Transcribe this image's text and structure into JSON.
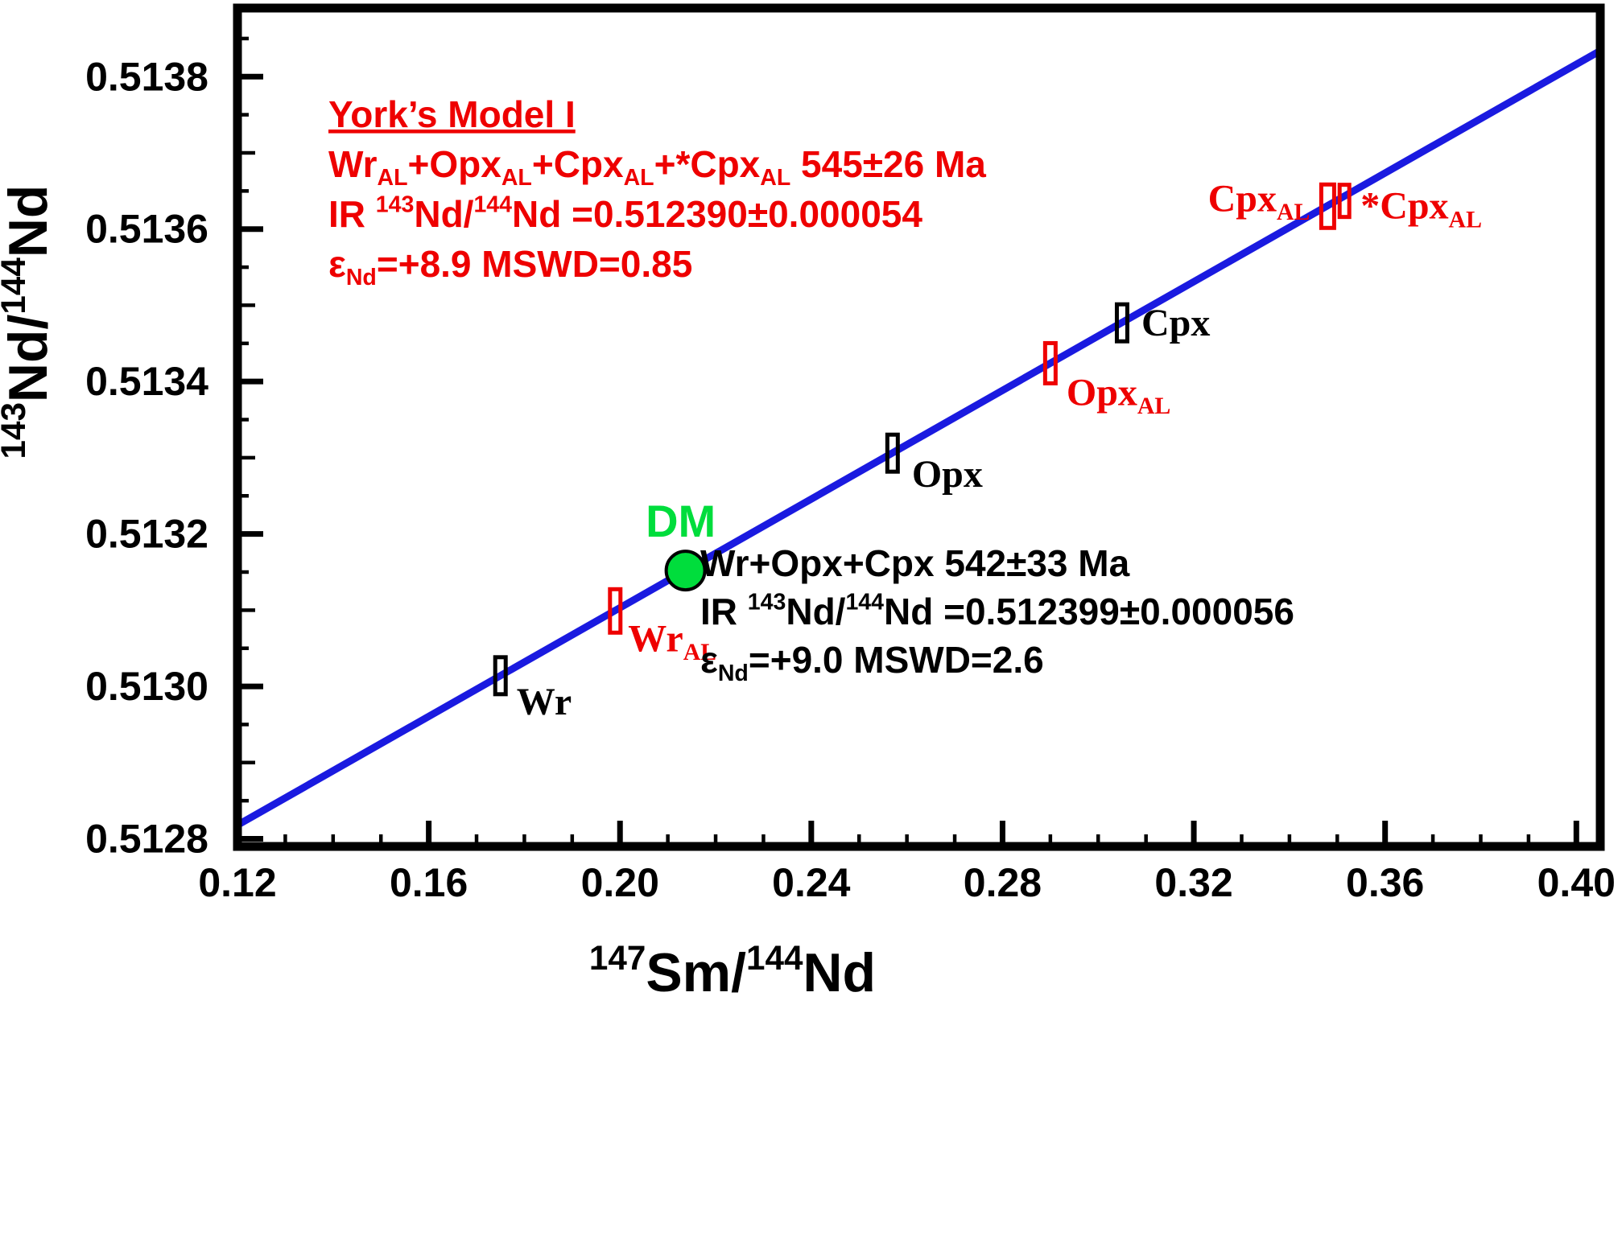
{
  "figure": {
    "background": "#ffffff",
    "frame_color": "#000000"
  },
  "chart_data": {
    "type": "scatter",
    "title": "",
    "xlabel": "^{147}Sm/^{144}Nd",
    "ylabel": "^{143}Nd/^{144}Nd",
    "xlim": [
      0.12,
      0.405
    ],
    "ylim": [
      0.51279,
      0.51389
    ],
    "grid": false,
    "x_major_ticks": [
      0.12,
      0.16,
      0.2,
      0.24,
      0.28,
      0.32,
      0.36,
      0.4
    ],
    "x_tick_labels": [
      "0.12",
      "0.16",
      "0.20",
      "0.24",
      "0.28",
      "0.32",
      "0.36",
      "0.40"
    ],
    "x_minor_step": 0.01,
    "y_major_ticks": [
      0.5128,
      0.513,
      0.5132,
      0.5134,
      0.5136,
      0.5138
    ],
    "y_tick_labels": [
      "0.5128",
      "0.5130",
      "0.5132",
      "0.5134",
      "0.5136",
      "0.5138"
    ],
    "y_minor_step": 5e-05,
    "isochron_line": {
      "color": "#1a1ae0",
      "x": [
        0.12,
        0.405
      ],
      "y": [
        0.512818,
        0.513834
      ]
    },
    "points": [
      {
        "id": "wr",
        "label": "Wr",
        "x": 0.175,
        "y": 0.513014,
        "color": "#000000",
        "marker": "error-box"
      },
      {
        "id": "wr-al",
        "label": "Wr_{AL}",
        "x": 0.199,
        "y": 0.513099,
        "color": "#ee0000",
        "marker": "error-box"
      },
      {
        "id": "dm",
        "label": "DM",
        "x": 0.2137,
        "y": 0.513152,
        "color": "#00dd3c",
        "marker": "circle"
      },
      {
        "id": "opx",
        "label": "Opx",
        "x": 0.257,
        "y": 0.513306,
        "color": "#000000",
        "marker": "error-box"
      },
      {
        "id": "opx-al",
        "label": "Opx_{AL}",
        "x": 0.29,
        "y": 0.513424,
        "color": "#ee0000",
        "marker": "error-box"
      },
      {
        "id": "cpx",
        "label": "Cpx",
        "x": 0.305,
        "y": 0.513477,
        "color": "#000000",
        "marker": "error-box"
      },
      {
        "id": "cpx-al",
        "label": "Cpx_{AL}",
        "x": 0.348,
        "y": 0.51363,
        "color": "#ee0000",
        "marker": "error-box"
      },
      {
        "id": "star-cpx-al",
        "label": "*Cpx_{AL}",
        "x": 0.3515,
        "y": 0.513637,
        "color": "#ee0000",
        "marker": "error-box"
      }
    ],
    "annotations": [
      {
        "id": "york-model-i",
        "color": "#ee0000",
        "lines": [
          {
            "text": "York’s Model I",
            "underline": true
          },
          {
            "text": "Wr_{AL}+Opx_{AL}+Cpx_{AL}+*Cpx_{AL}  545±26 Ma"
          },
          {
            "text": "IR ^{143}Nd/^{144}Nd =0.512390±0.000054"
          },
          {
            "text": "ε_{Nd}=+8.9 MSWD=0.85"
          }
        ]
      },
      {
        "id": "wr-opx-cpx",
        "color": "#000000",
        "lines": [
          {
            "text": "Wr+Opx+Cpx 542±33 Ma"
          },
          {
            "text": "IR ^{143}Nd/^{144}Nd =0.512399±0.000056"
          },
          {
            "text": "ε_{Nd}=+9.0 MSWD=2.6"
          }
        ]
      }
    ]
  }
}
